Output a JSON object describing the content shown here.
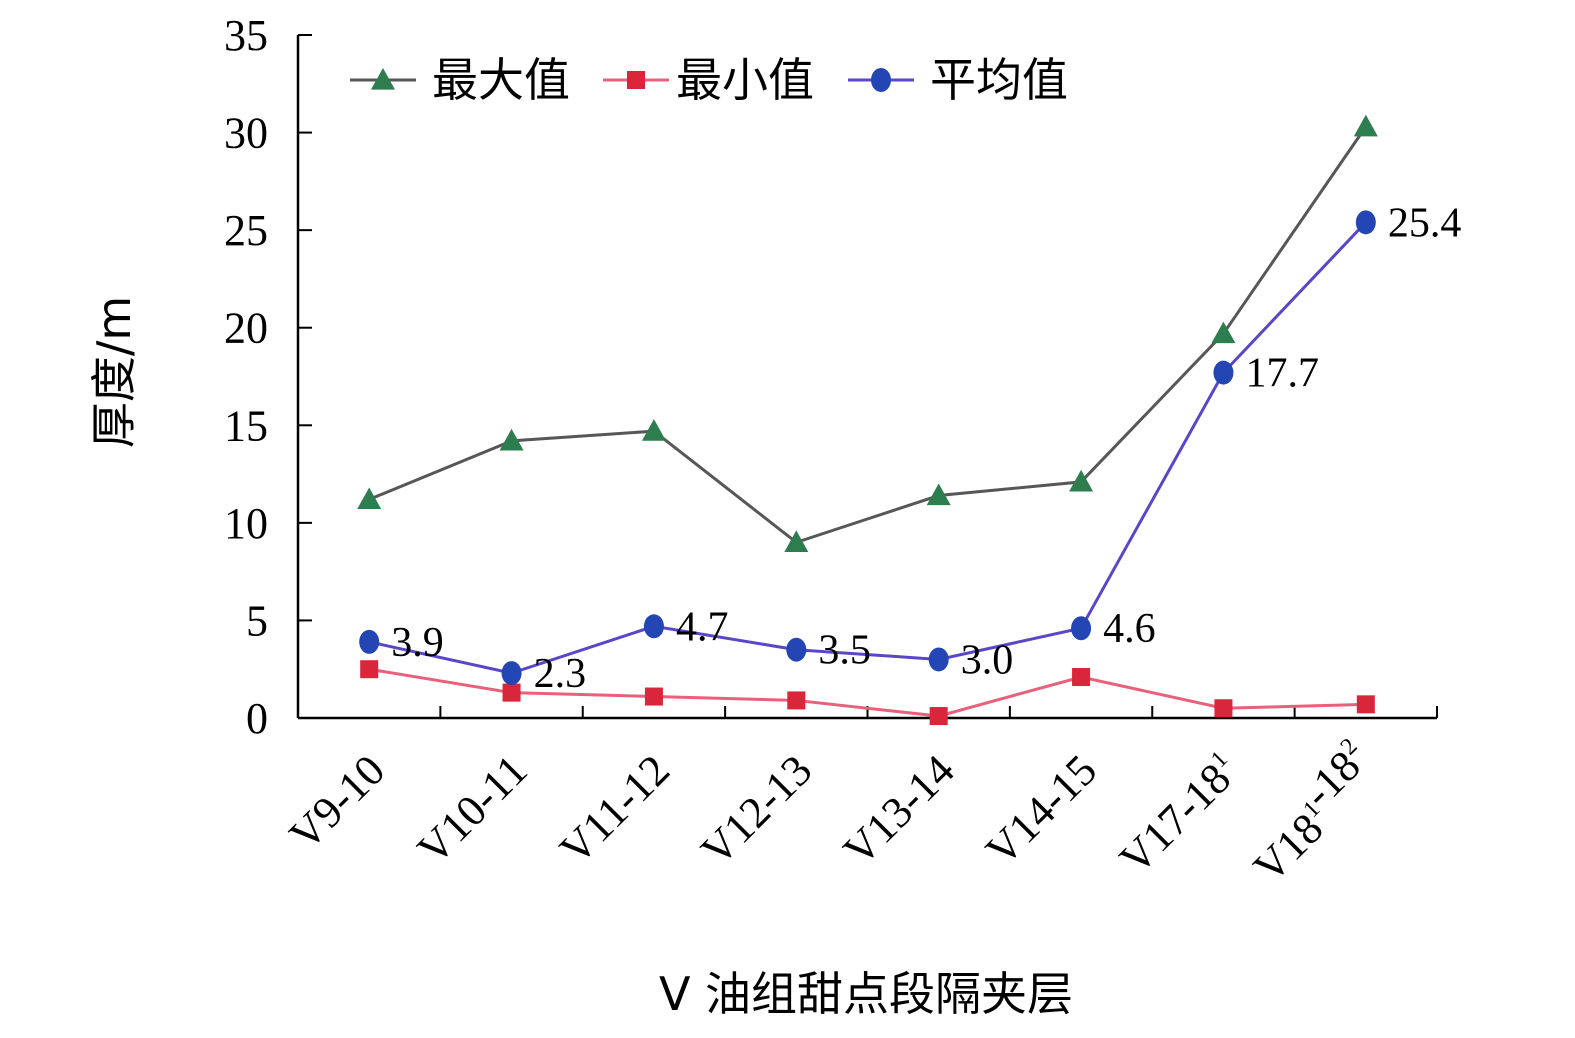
{
  "chart_data": {
    "type": "line",
    "xlabel": "V 油组甜点段隔夹层",
    "ylabel": "厚度/m",
    "ylim": [
      0,
      35
    ],
    "yticks": [
      0,
      5,
      10,
      15,
      20,
      25,
      30,
      35
    ],
    "categories": [
      {
        "base": "V9-10",
        "parts": []
      },
      {
        "base": "V10-11",
        "parts": []
      },
      {
        "base": "V11-12",
        "parts": []
      },
      {
        "base": "V12-13",
        "parts": []
      },
      {
        "base": "V13-14",
        "parts": []
      },
      {
        "base": "V14-15",
        "parts": []
      },
      {
        "base": "V17-18",
        "parts": [
          {
            "sup": "1"
          }
        ]
      },
      {
        "base": "V18",
        "parts": [
          {
            "sup": "1"
          },
          {
            "text": "-18"
          },
          {
            "sup": "2"
          }
        ]
      }
    ],
    "legend_position": "top-left",
    "grid": false,
    "series": [
      {
        "name": "最大值",
        "marker": "triangle",
        "color": "#575757",
        "marker_color": "#2e7d4f",
        "values": [
          11.2,
          14.2,
          14.7,
          9.0,
          11.4,
          12.1,
          19.7,
          30.3
        ]
      },
      {
        "name": "最小值",
        "marker": "square",
        "color": "#e8607a",
        "marker_color": "#d9263a",
        "values": [
          2.5,
          1.3,
          1.1,
          0.9,
          0.1,
          2.1,
          0.5,
          0.7
        ]
      },
      {
        "name": "平均值",
        "marker": "circle",
        "color": "#5b45c8",
        "marker_color": "#2346b4",
        "values": [
          3.9,
          2.3,
          4.7,
          3.5,
          3.0,
          4.6,
          17.7,
          25.4
        ],
        "data_labels": [
          "3.9",
          "2.3",
          "4.7",
          "3.5",
          "3.0",
          "4.6",
          "17.7",
          "25.4"
        ]
      }
    ]
  }
}
